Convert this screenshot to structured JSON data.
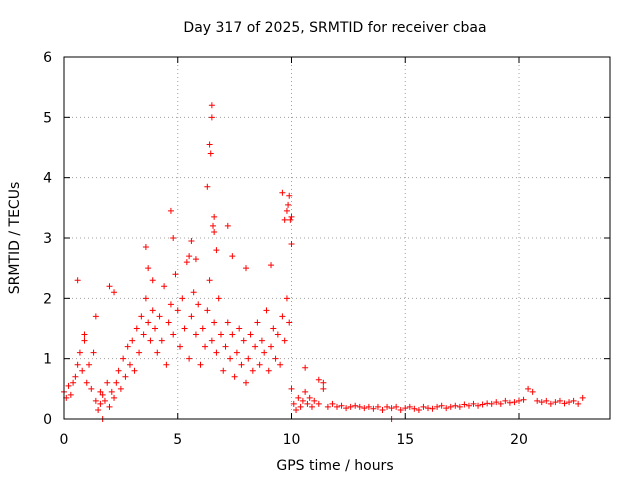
{
  "chart_data": {
    "type": "scatter",
    "title": "Day 317 of 2025, SRMTID for receiver cbaa",
    "xlabel": "GPS time / hours",
    "ylabel": "SRMTID / TECUs",
    "xlim": [
      0,
      24
    ],
    "ylim": [
      0,
      6
    ],
    "xticks": [
      0,
      5,
      10,
      15,
      20
    ],
    "yticks": [
      0,
      1,
      2,
      3,
      4,
      5,
      6
    ],
    "grid": true,
    "marker": "+",
    "color": "#ff0000",
    "series": [
      {
        "name": "SRMTID",
        "x": [
          0.0,
          0.1,
          0.2,
          0.3,
          0.4,
          0.5,
          0.6,
          0.7,
          0.8,
          0.9,
          1.0,
          1.1,
          1.2,
          1.3,
          1.4,
          1.5,
          1.6,
          1.7,
          1.8,
          1.9,
          2.0,
          2.1,
          2.2,
          2.3,
          2.4,
          2.5,
          2.6,
          2.7,
          2.8,
          2.9,
          3.0,
          3.1,
          3.2,
          3.3,
          3.4,
          3.5,
          3.6,
          3.7,
          3.8,
          3.9,
          4.0,
          4.1,
          4.2,
          4.3,
          4.4,
          4.5,
          4.6,
          4.7,
          4.8,
          4.9,
          5.0,
          5.1,
          5.2,
          5.3,
          5.4,
          5.5,
          5.6,
          5.7,
          5.8,
          5.9,
          6.0,
          6.1,
          6.2,
          6.3,
          6.4,
          6.5,
          6.6,
          6.7,
          6.8,
          6.9,
          7.0,
          7.1,
          7.2,
          7.3,
          7.4,
          7.5,
          7.6,
          7.7,
          7.8,
          7.9,
          8.0,
          8.1,
          8.2,
          8.3,
          8.4,
          8.5,
          8.6,
          8.7,
          8.8,
          8.9,
          9.0,
          9.1,
          9.2,
          9.3,
          9.4,
          9.5,
          9.6,
          9.7,
          9.8,
          9.9,
          10.0,
          10.1,
          10.2,
          10.3,
          10.4,
          10.5,
          10.6,
          10.7,
          10.8,
          10.9,
          11.0,
          11.2,
          11.4,
          11.6,
          11.8,
          12.0,
          12.2,
          12.4,
          12.6,
          12.8,
          13.0,
          13.2,
          13.4,
          13.6,
          13.8,
          14.0,
          14.2,
          14.4,
          14.6,
          14.8,
          15.0,
          15.2,
          15.4,
          15.6,
          15.8,
          16.0,
          16.2,
          16.4,
          16.6,
          16.8,
          17.0,
          17.2,
          17.4,
          17.6,
          17.8,
          18.0,
          18.2,
          18.4,
          18.6,
          18.8,
          19.0,
          19.2,
          19.4,
          19.6,
          19.8,
          20.0,
          20.2,
          20.4,
          20.6,
          20.8,
          21.0,
          21.2,
          21.4,
          21.6,
          21.8,
          22.0,
          22.2,
          22.4,
          22.6,
          22.8,
          0.6,
          0.9,
          1.4,
          2.0,
          2.2,
          3.6,
          3.7,
          3.9,
          4.7,
          4.8,
          5.5,
          5.6,
          5.8,
          6.3,
          6.4,
          6.45,
          6.5,
          6.5,
          6.55,
          6.6,
          6.6,
          6.7,
          7.2,
          7.4,
          8.0,
          9.1,
          9.6,
          9.7,
          9.8,
          9.85,
          9.9,
          9.95,
          10.0,
          10.0,
          1.6,
          1.7,
          14.4,
          10.6,
          11.2,
          11.4
        ],
        "y": [
          0.45,
          0.35,
          0.55,
          0.4,
          0.6,
          0.7,
          0.9,
          1.1,
          0.8,
          1.3,
          0.6,
          0.9,
          0.5,
          1.1,
          0.3,
          0.15,
          0.25,
          0.4,
          0.3,
          0.6,
          0.2,
          0.45,
          0.35,
          0.6,
          0.8,
          0.5,
          1.0,
          0.7,
          1.2,
          0.9,
          1.3,
          0.8,
          1.5,
          1.1,
          1.7,
          1.4,
          2.0,
          1.6,
          1.3,
          1.8,
          1.5,
          1.1,
          1.7,
          1.3,
          2.2,
          0.9,
          1.6,
          1.9,
          1.4,
          2.4,
          1.8,
          1.2,
          2.0,
          1.5,
          2.6,
          1.0,
          1.7,
          2.1,
          1.4,
          1.9,
          0.9,
          1.5,
          1.2,
          1.8,
          2.3,
          1.3,
          1.6,
          1.1,
          2.0,
          1.4,
          0.8,
          1.2,
          1.6,
          1.0,
          1.4,
          0.7,
          1.1,
          1.5,
          0.9,
          1.3,
          0.6,
          1.0,
          1.4,
          0.8,
          1.2,
          1.6,
          0.9,
          1.3,
          1.1,
          1.8,
          0.8,
          1.2,
          1.5,
          1.0,
          1.4,
          0.9,
          1.7,
          1.3,
          2.0,
          1.6,
          0.5,
          0.25,
          0.15,
          0.35,
          0.2,
          0.3,
          0.45,
          0.25,
          0.35,
          0.2,
          0.3,
          0.25,
          0.5,
          0.2,
          0.25,
          0.2,
          0.22,
          0.18,
          0.2,
          0.22,
          0.2,
          0.18,
          0.2,
          0.17,
          0.2,
          0.15,
          0.2,
          0.18,
          0.2,
          0.15,
          0.18,
          0.2,
          0.17,
          0.15,
          0.2,
          0.18,
          0.17,
          0.2,
          0.22,
          0.18,
          0.2,
          0.22,
          0.2,
          0.24,
          0.22,
          0.25,
          0.22,
          0.24,
          0.26,
          0.25,
          0.28,
          0.25,
          0.3,
          0.27,
          0.28,
          0.3,
          0.32,
          0.5,
          0.45,
          0.3,
          0.28,
          0.3,
          0.25,
          0.28,
          0.3,
          0.26,
          0.28,
          0.3,
          0.25,
          0.35,
          2.3,
          1.4,
          1.7,
          2.2,
          2.1,
          2.85,
          2.5,
          2.3,
          3.45,
          3.0,
          2.7,
          2.95,
          2.65,
          3.85,
          4.55,
          4.4,
          5.2,
          5.0,
          3.2,
          3.35,
          3.1,
          2.8,
          3.2,
          2.7,
          2.5,
          2.55,
          3.75,
          3.3,
          3.45,
          3.55,
          3.7,
          3.3,
          3.35,
          2.9,
          0.45,
          0.0,
          0.0,
          0.85,
          0.65,
          0.6
        ]
      }
    ]
  }
}
